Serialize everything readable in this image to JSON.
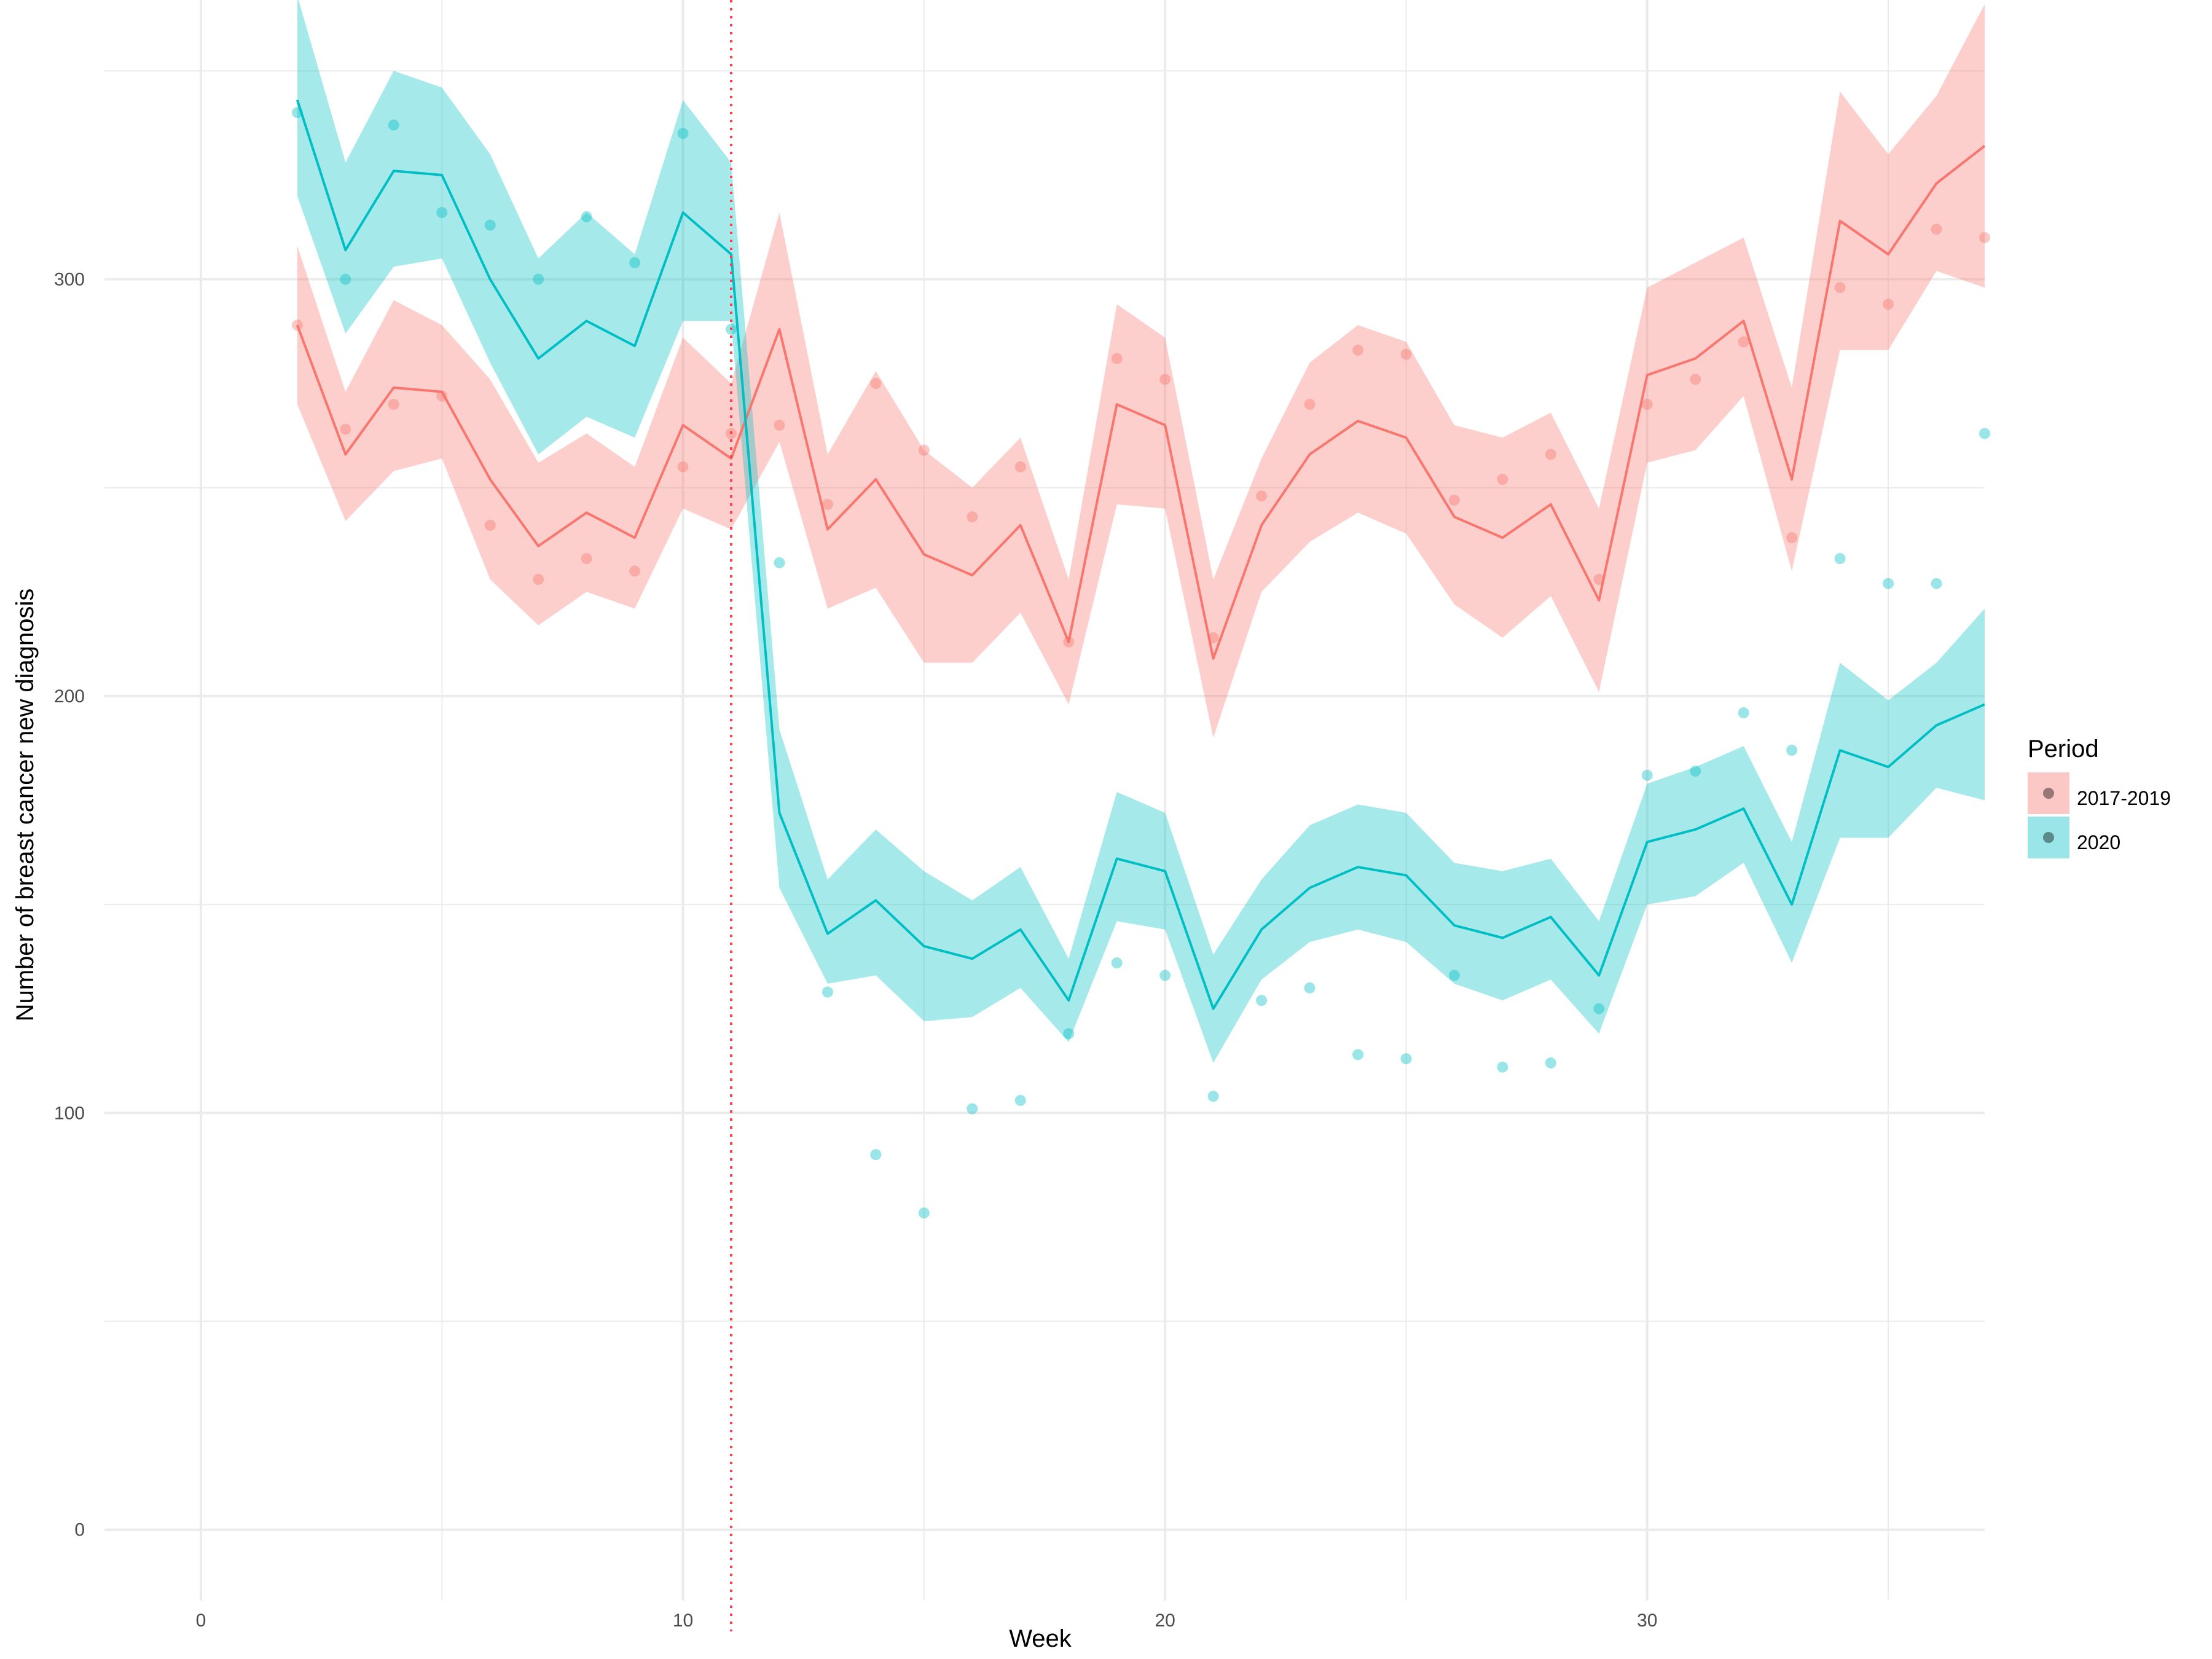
{
  "chart_data": {
    "type": "line",
    "title": "",
    "xlabel": "Week",
    "ylabel": "Number of breast cancer new diagnosis",
    "xlim": [
      -2,
      37
    ],
    "ylim": [
      -17,
      367
    ],
    "x_ticks": [
      0,
      10,
      20,
      30
    ],
    "y_ticks": [
      0,
      100,
      200,
      300
    ],
    "grid": true,
    "vline": {
      "x": 11,
      "color": "#F8424E",
      "style": "dotted"
    },
    "legend": {
      "title": "Period",
      "position": "right"
    },
    "series": [
      {
        "name": "2017-2019",
        "color": "#F8766D",
        "x": [
          2,
          3,
          4,
          5,
          6,
          7,
          8,
          9,
          10,
          11,
          12,
          13,
          14,
          15,
          16,
          17,
          18,
          19,
          20,
          21,
          22,
          23,
          24,
          25,
          26,
          27,
          28,
          29,
          30,
          31,
          32,
          33,
          34,
          35,
          36,
          37
        ],
        "fit": [
          289,
          258,
          274,
          273,
          252,
          236,
          244,
          238,
          265,
          257,
          288,
          240,
          252,
          234,
          229,
          241,
          213,
          270,
          265,
          209,
          241,
          258,
          266,
          262,
          243,
          238,
          246,
          223,
          277,
          281,
          290,
          252,
          314,
          306,
          323,
          332
        ],
        "lower": [
          270,
          242,
          254,
          257,
          228,
          217,
          225,
          221,
          245,
          240,
          261,
          221,
          226,
          208,
          208,
          220,
          198,
          246,
          245,
          190,
          225,
          237,
          244,
          239,
          222,
          214,
          224,
          201,
          256,
          259,
          272,
          230,
          283,
          283,
          302,
          298
        ],
        "upper": [
          308,
          273,
          295,
          289,
          276,
          256,
          263,
          255,
          286,
          275,
          316,
          258,
          278,
          259,
          250,
          262,
          228,
          294,
          286,
          228,
          257,
          280,
          289,
          285,
          265,
          262,
          268,
          245,
          298,
          304,
          310,
          274,
          345,
          330,
          344,
          366
        ],
        "points": [
          289,
          264,
          270,
          272,
          241,
          228,
          233,
          230,
          255,
          263,
          265,
          246,
          275,
          259,
          243,
          255,
          213,
          281,
          276,
          214,
          248,
          270,
          283,
          282,
          247,
          252,
          258,
          228,
          270,
          276,
          285,
          238,
          298,
          294,
          312,
          310
        ]
      },
      {
        "name": "2020",
        "color": "#00BFC4",
        "x": [
          2,
          3,
          4,
          5,
          6,
          7,
          8,
          9,
          10,
          11,
          12,
          13,
          14,
          15,
          16,
          17,
          18,
          19,
          20,
          21,
          22,
          23,
          24,
          25,
          26,
          27,
          28,
          29,
          30,
          31,
          32,
          33,
          34,
          35,
          36,
          37
        ],
        "fit": [
          343,
          307,
          326,
          325,
          300,
          281,
          290,
          284,
          316,
          306,
          172,
          143,
          151,
          140,
          137,
          144,
          127,
          161,
          158,
          125,
          144,
          154,
          159,
          157,
          145,
          142,
          147,
          133,
          165,
          168,
          173,
          150,
          187,
          183,
          193,
          198
        ],
        "lower": [
          320,
          287,
          303,
          305,
          280,
          258,
          267,
          262,
          290,
          290,
          154,
          131,
          133,
          122,
          123,
          130,
          117,
          146,
          144,
          112,
          132,
          141,
          144,
          141,
          131,
          127,
          132,
          119,
          150,
          152,
          160,
          136,
          166,
          166,
          178,
          175
        ],
        "upper": [
          368,
          328,
          350,
          346,
          330,
          305,
          316,
          306,
          343,
          328,
          192,
          156,
          168,
          158,
          151,
          159,
          137,
          177,
          172,
          138,
          156,
          169,
          174,
          172,
          160,
          158,
          161,
          146,
          179,
          183,
          188,
          165,
          208,
          199,
          208,
          221
        ],
        "points": [
          340,
          300,
          337,
          316,
          313,
          300,
          315,
          304,
          335,
          288,
          232,
          129,
          90,
          76,
          101,
          103,
          119,
          136,
          133,
          104,
          127,
          130,
          114,
          113,
          133,
          111,
          112,
          125,
          181,
          182,
          196,
          187,
          233,
          227,
          227,
          263
        ]
      }
    ]
  },
  "colors": {
    "series_2017_2019": "#F8766D",
    "series_2020": "#00BFC4",
    "vline": "#F8424E",
    "grid": "#EBEBEB"
  }
}
